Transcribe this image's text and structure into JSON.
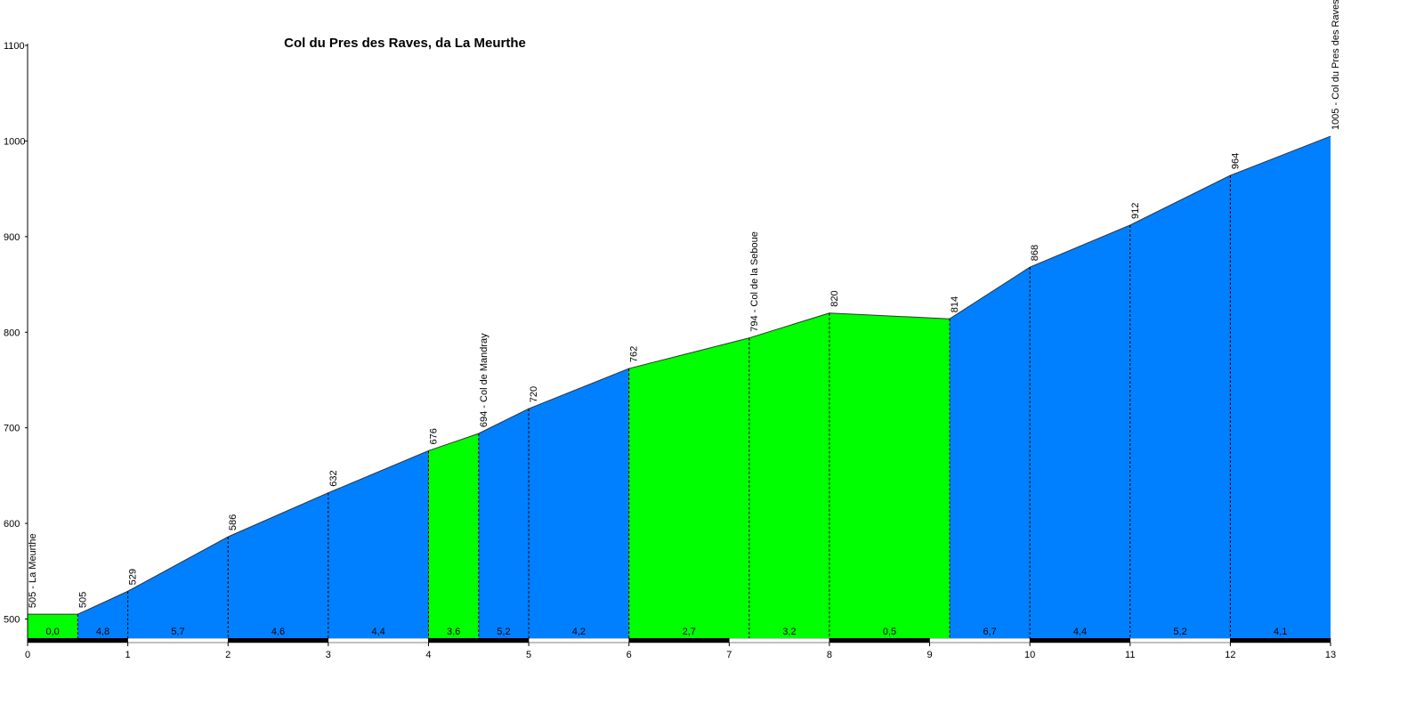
{
  "chart_data": {
    "type": "elevation-profile",
    "title": "Col du Pres des Raves, da La Meurthe",
    "x": [
      0,
      0.5,
      1,
      2,
      3,
      4,
      4.5,
      5,
      6,
      7.2,
      8,
      9.2,
      10,
      11,
      12,
      13
    ],
    "values": [
      505,
      505,
      529,
      586,
      632,
      676,
      694,
      720,
      762,
      794,
      820,
      814,
      868,
      912,
      964,
      1005
    ],
    "value_labels": [
      "505 - La Meurthe",
      "505",
      "529",
      "586",
      "632",
      "676",
      "694 - Col de Mandray",
      "720",
      "762",
      "794 - Col de la Seboue",
      "820",
      "814",
      "868",
      "912",
      "964",
      "1005 - Col du Pres des Raves"
    ],
    "gradients": [
      0.0,
      4.8,
      5.7,
      4.6,
      4.4,
      3.6,
      5.2,
      4.2,
      2.7,
      3.2,
      0.5,
      6.7,
      4.4,
      5.2,
      4.1
    ],
    "gradient_labels": [
      "0,0",
      "4,8",
      "5,7",
      "4,6",
      "4,4",
      "3,6",
      "5,2",
      "4,2",
      "2,7",
      "3,2",
      "0,5",
      "6,7",
      "4,4",
      "5,2",
      "4,1"
    ],
    "segment_colors": [
      "#00ff00",
      "#0080ff",
      "#0080ff",
      "#0080ff",
      "#0080ff",
      "#00ff00",
      "#0080ff",
      "#0080ff",
      "#00ff00",
      "#00ff00",
      "#00ff00",
      "#0080ff",
      "#0080ff",
      "#0080ff",
      "#0080ff"
    ],
    "xlim": [
      0,
      13
    ],
    "ylim": [
      480,
      1100
    ],
    "xticks": [
      0,
      1,
      2,
      3,
      4,
      5,
      6,
      7,
      8,
      9,
      10,
      11,
      12,
      13
    ],
    "yticks": [
      500,
      600,
      700,
      800,
      900,
      1000,
      1100
    ]
  }
}
